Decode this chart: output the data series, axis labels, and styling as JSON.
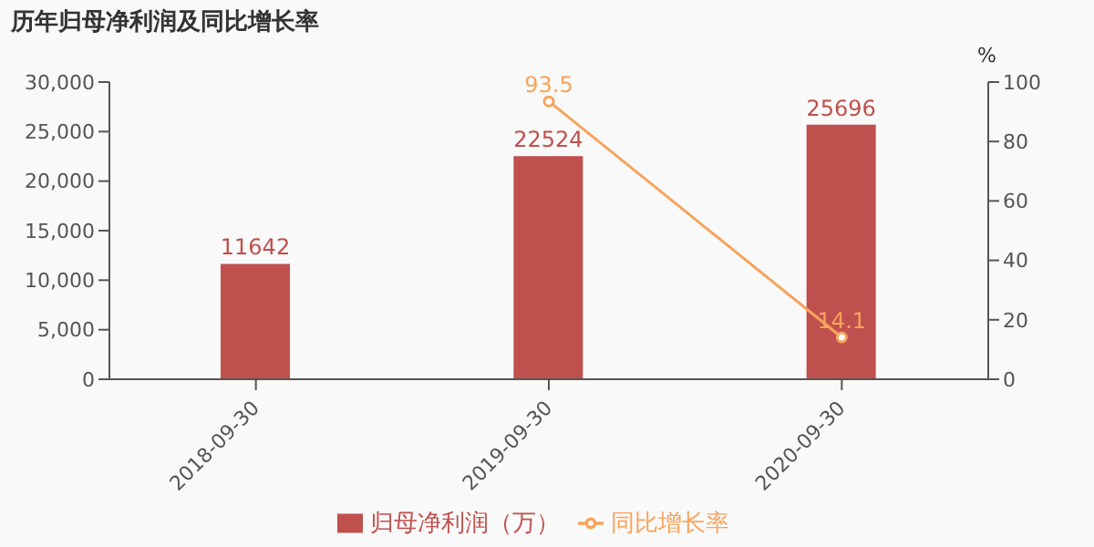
{
  "chart_data": {
    "type": "bar",
    "title": "历年归母净利润及同比增长率",
    "y2label": "%",
    "categories": [
      "2018-09-30",
      "2019-09-30",
      "2020-09-30"
    ],
    "series": [
      {
        "name": "归母净利润（万）",
        "color": "#c0504d",
        "values": [
          11642,
          22524,
          25696
        ]
      },
      {
        "name": "同比增长率",
        "type": "line",
        "axis": "y2",
        "color": "#f7a35c",
        "marker": "circle",
        "values": [
          null,
          93.5,
          14.1
        ]
      }
    ],
    "ylim": [
      0,
      30000
    ],
    "yticks": [
      0,
      {
        "value": 5000,
        "label": "5,000"
      },
      {
        "value": 10000,
        "label": "10,000"
      },
      {
        "value": 15000,
        "label": "15,000"
      },
      {
        "value": 20000,
        "label": "20,000"
      },
      {
        "value": 25000,
        "label": "25,000"
      },
      {
        "value": 30000,
        "label": "30,000"
      }
    ],
    "y2lim": [
      0,
      100
    ],
    "y2ticks": [
      0,
      20,
      40,
      60,
      80,
      100
    ],
    "data_labels": true,
    "legend": "bottom"
  }
}
